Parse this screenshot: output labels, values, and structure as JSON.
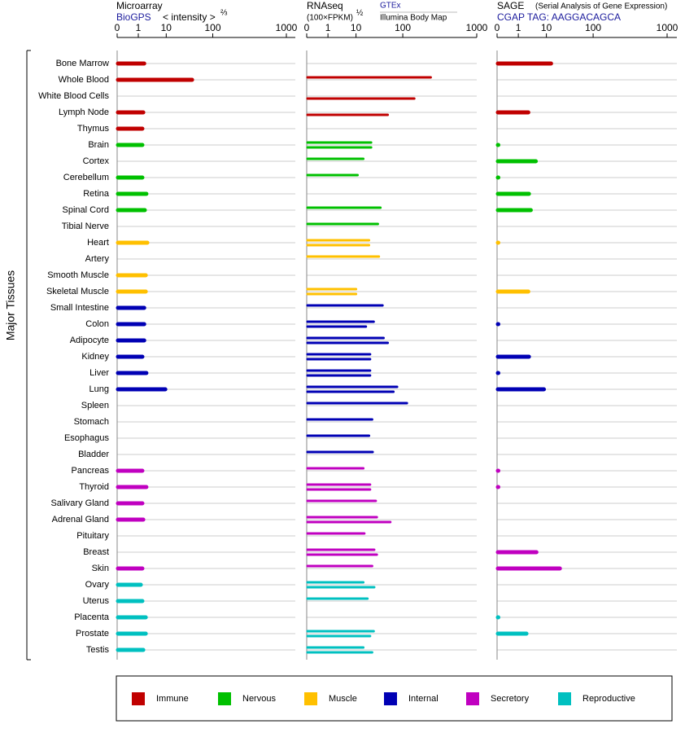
{
  "chart_data": {
    "type": "bar",
    "y_label": "Major Tissues",
    "groups": [
      {
        "name": "Immune",
        "color": "#c00000",
        "categories": [
          "Bone Marrow",
          "Whole Blood",
          "White Blood Cells",
          "Lymph Node",
          "Thymus"
        ]
      },
      {
        "name": "Nervous",
        "color": "#00c000",
        "categories": [
          "Brain",
          "Cortex",
          "Cerebellum",
          "Retina",
          "Spinal Cord",
          "Tibial Nerve"
        ]
      },
      {
        "name": "Muscle",
        "color": "#ffc000",
        "categories": [
          "Heart",
          "Artery",
          "Smooth Muscle",
          "Skeletal Muscle"
        ]
      },
      {
        "name": "Internal",
        "color": "#0000b4",
        "categories": [
          "Small Intestine",
          "Colon",
          "Adipocyte",
          "Kidney",
          "Liver",
          "Lung",
          "Spleen",
          "Stomach",
          "Esophagus",
          "Bladder"
        ]
      },
      {
        "name": "Secretory",
        "color": "#c000c0",
        "categories": [
          "Pancreas",
          "Thyroid",
          "Salivary Gland",
          "Adrenal Gland",
          "Pituitary",
          "Breast",
          "Skin"
        ]
      },
      {
        "name": "Reproductive",
        "color": "#00c0c0",
        "categories": [
          "Ovary",
          "Uterus",
          "Placenta",
          "Prostate",
          "Testis"
        ]
      }
    ],
    "panels": [
      {
        "title": "Microarray",
        "subtitle": "BioGPS",
        "x_label": "< intensity >",
        "x_label_power": "⅔",
        "xlim": [
          0,
          1000
        ],
        "xticks": [
          0,
          1,
          10,
          100,
          1000
        ],
        "series": [
          {
            "values": [
              2.9,
              60,
              null,
              2.6,
              2.3,
              2.3,
              null,
              2.3,
              3.6,
              3.1,
              null,
              3.9,
              null,
              3.4,
              3.4,
              2.9,
              2.9,
              2.9,
              2.3,
              3.6,
              9.7,
              null,
              null,
              null,
              null,
              2.3,
              3.6,
              2.3,
              2.6,
              null,
              null,
              2.3,
              1.8,
              2.3,
              3.4,
              3.4,
              2.6
            ]
          }
        ]
      },
      {
        "title": "RNAseq",
        "x_label": "(100×FPKM)",
        "x_label_power": "½",
        "xlim": [
          0,
          1000
        ],
        "xticks": [
          0,
          1,
          10,
          100,
          1000
        ],
        "series": [
          {
            "name": "GTEx",
            "values": [
              null,
              440,
              null,
              null,
              null,
              39,
              24,
              13,
              null,
              57,
              52,
              35,
              54,
              null,
              10,
              61,
              44,
              63,
              37,
              37,
              89,
              150,
              41,
              35,
              42,
              24,
              37,
              48,
              50,
              26,
              45,
              41,
              24,
              32,
              null,
              44,
              24
            ]
          },
          {
            "name": "Illumina Body Map",
            "values": [
              null,
              null,
              240,
              71,
              null,
              39,
              null,
              null,
              null,
              null,
              null,
              35,
              null,
              null,
              10,
              null,
              29,
              71,
              37,
              37,
              82,
              null,
              null,
              null,
              null,
              null,
              37,
              null,
              76,
              null,
              50,
              null,
              45,
              null,
              null,
              37,
              41
            ]
          }
        ]
      },
      {
        "title": "SAGE",
        "title_note": "(Serial Analysis of Gene Expression)",
        "subtitle": "CGAP TAG: AAGGACAGCA",
        "xlim": [
          0,
          1000
        ],
        "xticks": [
          0,
          1,
          10,
          100,
          1000
        ],
        "series": [
          {
            "values": [
              19,
              null,
              null,
              4.2,
              null,
              0.05,
              6.6,
              0.05,
              4.4,
              5.0,
              null,
              0.03,
              null,
              null,
              4.2,
              null,
              0.05,
              null,
              4.4,
              0.05,
              9.2,
              null,
              null,
              null,
              null,
              0.05,
              0.05,
              null,
              null,
              null,
              6.8,
              36,
              null,
              null,
              0.05,
              3.6,
              null
            ]
          }
        ]
      }
    ]
  }
}
